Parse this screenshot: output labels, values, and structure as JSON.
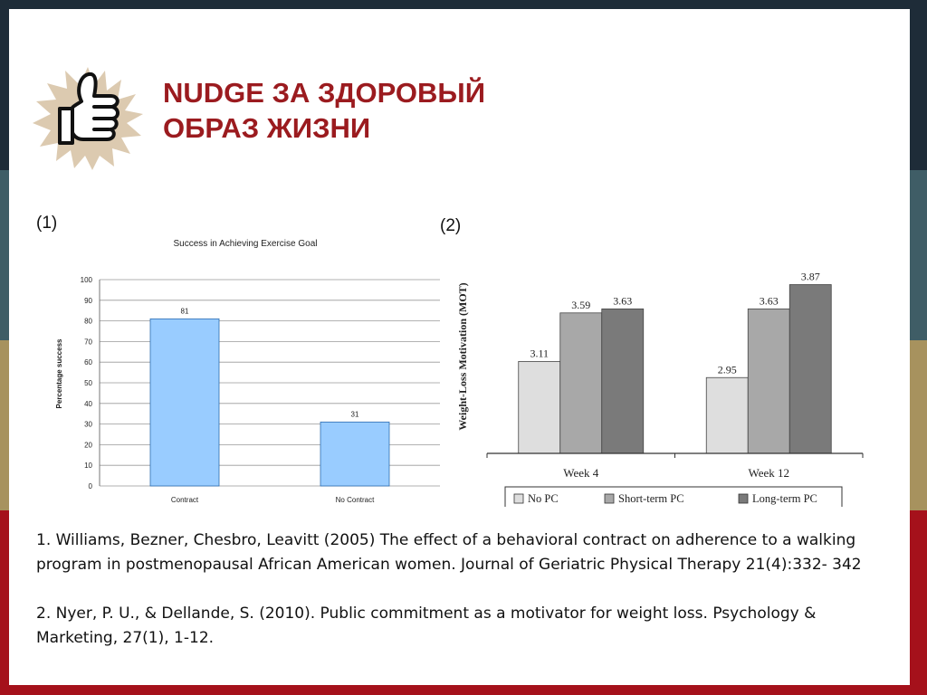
{
  "slide": {
    "title_line1": "NUDGE ЗА ЗДОРОВЫЙ",
    "title_line2": "ОБРАЗ ЖИЗНИ",
    "label1": "(1)",
    "label2": "(2)"
  },
  "references": [
    "1. Williams, Bezner, Chesbro, Leavitt (2005) The effect of a behavioral contract on adherence to a walking program in postmenopausal African American women. Journal of Geriatric Physical Therapy 21(4):332- 342",
    "2. Nyer, P. U., & Dellande, S. (2010). Public commitment as a motivator for weight loss. Psychology & Marketing, 27(1), 1-12."
  ],
  "colors": {
    "title": "#9b1b1f",
    "bar1": "#99ccff",
    "no_pc": "#dedede",
    "short_pc": "#a8a8a8",
    "long_pc": "#7a7a7a"
  },
  "chart_data": [
    {
      "type": "bar",
      "title": "Success in Achieving Exercise Goal",
      "ylabel": "Percentage success",
      "xlabel": "",
      "categories": [
        "Contract",
        "No Contract"
      ],
      "values": [
        81,
        31
      ],
      "ylim": [
        0,
        100
      ],
      "yticks": [
        0,
        10,
        20,
        30,
        40,
        50,
        60,
        70,
        80,
        90,
        100
      ],
      "grid": true
    },
    {
      "type": "bar",
      "ylabel": "Weight-Loss Motivation (MOT)",
      "categories": [
        "Week 4",
        "Week 12"
      ],
      "series": [
        {
          "name": "No PC",
          "values": [
            3.11,
            2.95
          ]
        },
        {
          "name": "Short-term PC",
          "values": [
            3.59,
            3.63
          ]
        },
        {
          "name": "Long-term PC",
          "values": [
            3.63,
            3.87
          ]
        }
      ],
      "ylim": [
        2.2,
        4.0
      ],
      "legend": "bottom"
    }
  ]
}
